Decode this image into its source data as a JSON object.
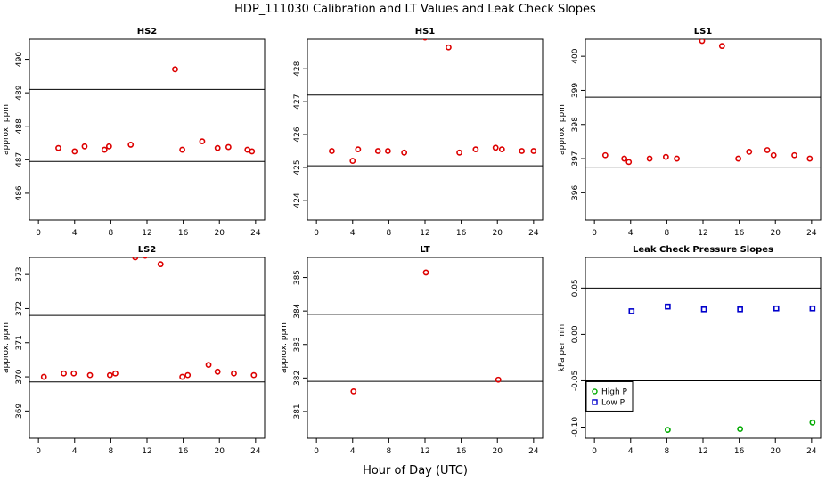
{
  "figure_title": "HDP_111030  Calibration and LT Values and Leak Check Slopes",
  "shared_xlabel": "Hour of Day (UTC)",
  "colors": {
    "red": "#dd0000",
    "blue": "#0000cc",
    "green": "#00aa00"
  },
  "chart_data": [
    {
      "type": "scatter",
      "title": "HS2",
      "ylabel": "approx. ppm",
      "xlim": [
        -1,
        25
      ],
      "ylim": [
        485.2,
        490.6
      ],
      "xticks": [
        0,
        4,
        8,
        12,
        16,
        20,
        24
      ],
      "yticks": [
        486,
        487,
        488,
        489,
        490
      ],
      "hlines": [
        486.95,
        489.1
      ],
      "grid": false,
      "series": [
        {
          "color": "red",
          "marker": "circle",
          "x": [
            2.2,
            4.0,
            5.1,
            7.3,
            7.8,
            10.2,
            15.1,
            15.9,
            18.1,
            19.8,
            21.0,
            23.1,
            23.6
          ],
          "y": [
            487.35,
            487.25,
            487.4,
            487.3,
            487.4,
            487.45,
            489.7,
            487.3,
            487.55,
            487.35,
            487.38,
            487.3,
            487.25
          ]
        }
      ]
    },
    {
      "type": "scatter",
      "title": "HS1",
      "ylabel": "",
      "xlim": [
        -1,
        25
      ],
      "ylim": [
        423.4,
        428.9
      ],
      "xticks": [
        0,
        4,
        8,
        12,
        16,
        20,
        24
      ],
      "yticks": [
        424,
        425,
        426,
        427,
        428
      ],
      "hlines": [
        425.05,
        427.2
      ],
      "grid": false,
      "series": [
        {
          "color": "red",
          "marker": "circle",
          "x": [
            1.7,
            4.0,
            4.6,
            6.8,
            7.9,
            9.7,
            12.0,
            14.6,
            15.8,
            17.6,
            19.8,
            20.5,
            22.7,
            24.0
          ],
          "y": [
            425.5,
            425.2,
            425.55,
            425.5,
            425.5,
            425.45,
            428.95,
            428.65,
            425.45,
            425.55,
            425.6,
            425.55,
            425.5,
            425.5
          ]
        }
      ]
    },
    {
      "type": "scatter",
      "title": "LS1",
      "ylabel": "approx. ppm",
      "xlim": [
        -1,
        25
      ],
      "ylim": [
        395.2,
        400.5
      ],
      "xticks": [
        0,
        4,
        8,
        12,
        16,
        20,
        24
      ],
      "yticks": [
        396,
        397,
        398,
        399,
        400
      ],
      "hlines": [
        396.75,
        398.8
      ],
      "grid": false,
      "series": [
        {
          "color": "red",
          "marker": "circle",
          "x": [
            1.2,
            3.3,
            3.8,
            6.1,
            7.9,
            9.1,
            11.9,
            14.1,
            15.9,
            17.1,
            19.1,
            19.8,
            22.1,
            23.8
          ],
          "y": [
            397.1,
            397.0,
            396.9,
            397.0,
            397.05,
            397.0,
            400.45,
            400.3,
            397.0,
            397.2,
            397.25,
            397.1,
            397.1,
            397.0
          ]
        }
      ]
    },
    {
      "type": "scatter",
      "title": "LS2",
      "ylabel": "approx. ppm",
      "xlim": [
        -1,
        25
      ],
      "ylim": [
        368.2,
        373.5
      ],
      "xticks": [
        0,
        4,
        8,
        12,
        16,
        20,
        24
      ],
      "yticks": [
        369,
        370,
        371,
        372,
        373
      ],
      "hlines": [
        369.85,
        371.8
      ],
      "grid": false,
      "series": [
        {
          "color": "red",
          "marker": "circle",
          "x": [
            0.6,
            2.8,
            3.9,
            5.7,
            7.9,
            8.5,
            10.7,
            11.8,
            13.5,
            15.9,
            16.5,
            18.8,
            19.8,
            21.6,
            23.8
          ],
          "y": [
            370.0,
            370.1,
            370.1,
            370.05,
            370.05,
            370.1,
            373.5,
            373.55,
            373.3,
            370.0,
            370.05,
            370.35,
            370.15,
            370.1,
            370.05
          ]
        }
      ]
    },
    {
      "type": "scatter",
      "title": "LT",
      "ylabel": "approx. ppm",
      "xlim": [
        -1,
        25
      ],
      "ylim": [
        380.2,
        385.6
      ],
      "xticks": [
        0,
        4,
        8,
        12,
        16,
        20,
        24
      ],
      "yticks": [
        381,
        382,
        383,
        384,
        385
      ],
      "hlines": [
        381.9,
        383.9
      ],
      "grid": false,
      "series": [
        {
          "color": "red",
          "marker": "circle",
          "x": [
            4.1,
            12.1,
            20.1
          ],
          "y": [
            381.6,
            385.15,
            381.95
          ]
        }
      ]
    },
    {
      "type": "scatter",
      "title": "Leak Check Pressure Slopes",
      "ylabel": "kPa per min",
      "xlim": [
        -1,
        25
      ],
      "ylim": [
        -0.112,
        0.083
      ],
      "xticks": [
        0,
        4,
        8,
        12,
        16,
        20,
        24
      ],
      "yticks": [
        -0.1,
        -0.05,
        0.0,
        0.05
      ],
      "ytick_labels": [
        "-0.10",
        "-0.05",
        "0.00",
        "0.05"
      ],
      "hlines": [
        -0.05,
        0.05
      ],
      "grid": false,
      "legend": {
        "position": "bottom-left",
        "entries": [
          "High P",
          "Low P"
        ]
      },
      "series": [
        {
          "name": "High P",
          "color": "green",
          "marker": "circle",
          "x": [
            8.1,
            16.1,
            24.1
          ],
          "y": [
            -0.103,
            -0.102,
            -0.095
          ]
        },
        {
          "name": "Low P",
          "color": "blue",
          "marker": "square",
          "x": [
            4.1,
            8.1,
            12.1,
            16.1,
            20.1,
            24.1
          ],
          "y": [
            0.025,
            0.03,
            0.027,
            0.027,
            0.028,
            0.028
          ]
        }
      ]
    }
  ]
}
